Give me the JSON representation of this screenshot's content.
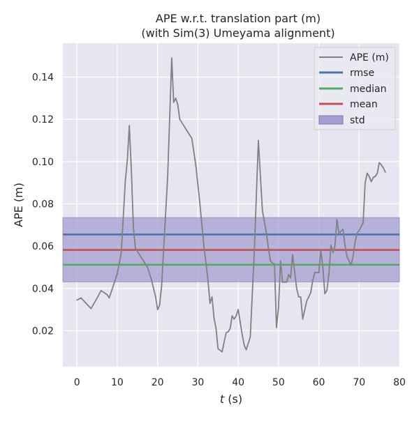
{
  "chart_data": {
    "type": "line",
    "title": [
      "APE w.r.t. translation part (m)",
      "(with Sim(3) Umeyama alignment)"
    ],
    "xlabel_var": "t",
    "xlabel_unit": " (s)",
    "ylabel": "APE (m)",
    "xlim": [
      -3.5,
      80
    ],
    "ylim": [
      0.003,
      0.156
    ],
    "xticks": [
      0,
      10,
      20,
      30,
      40,
      50,
      60,
      70,
      80
    ],
    "yticks": [
      0.02,
      0.04,
      0.06,
      0.08,
      0.1,
      0.12,
      0.14
    ],
    "ytick_labels": [
      "0.02",
      "0.04",
      "0.06",
      "0.08",
      "0.10",
      "0.12",
      "0.14"
    ],
    "grid": true,
    "legend_position": "top-right",
    "series": [
      {
        "name": "APE (m)",
        "color": "#808080",
        "x": [
          0,
          1,
          2,
          3.5,
          5,
          6,
          7.5,
          8,
          9.5,
          10,
          11,
          12,
          12.5,
          13,
          13.5,
          14,
          14.5,
          15.5,
          16.5,
          17.5,
          18.5,
          19,
          19.5,
          20,
          20.5,
          21,
          22.5,
          23.5,
          24,
          24.5,
          25,
          25.5,
          26.5,
          27.5,
          28.5,
          29.5,
          30.5,
          31.5,
          32.5,
          33,
          33.5,
          34,
          34.5,
          35,
          36,
          37,
          37.5,
          38,
          38.5,
          39,
          39.5,
          40,
          40.5,
          41,
          41.5,
          42,
          42.5,
          43,
          44,
          45,
          46,
          47,
          47.5,
          48,
          48.5,
          49,
          49.5,
          50,
          50.5,
          51,
          51.5,
          52,
          52.5,
          53,
          53.5,
          54,
          54.5,
          55,
          55.5,
          56,
          57,
          57.5,
          58,
          58.5,
          59,
          60,
          60.5,
          61,
          61.5,
          62,
          62.5,
          63,
          63.5,
          64,
          64.5,
          65,
          66,
          66.5,
          67,
          68,
          68.5,
          69,
          69.5,
          70,
          71,
          71.5,
          72,
          72.5,
          73,
          73.5,
          74,
          74.5,
          75,
          75.5,
          76,
          76.5
        ],
        "values": [
          0.0345,
          0.0355,
          0.0335,
          0.0305,
          0.0355,
          0.039,
          0.037,
          0.0355,
          0.044,
          0.047,
          0.057,
          0.091,
          0.101,
          0.117,
          0.096,
          0.069,
          0.059,
          0.056,
          0.053,
          0.05,
          0.044,
          0.04,
          0.036,
          0.03,
          0.032,
          0.041,
          0.093,
          0.149,
          0.128,
          0.13,
          0.127,
          0.12,
          0.117,
          0.114,
          0.111,
          0.098,
          0.08,
          0.06,
          0.044,
          0.033,
          0.036,
          0.026,
          0.021,
          0.0115,
          0.01,
          0.019,
          0.0195,
          0.021,
          0.027,
          0.0255,
          0.027,
          0.03,
          0.024,
          0.018,
          0.013,
          0.011,
          0.014,
          0.017,
          0.058,
          0.11,
          0.077,
          0.066,
          0.059,
          0.053,
          0.052,
          0.0515,
          0.0215,
          0.031,
          0.053,
          0.043,
          0.043,
          0.043,
          0.0465,
          0.045,
          0.056,
          0.048,
          0.04,
          0.036,
          0.036,
          0.0255,
          0.034,
          0.036,
          0.038,
          0.044,
          0.0475,
          0.0475,
          0.058,
          0.05,
          0.0375,
          0.039,
          0.047,
          0.0605,
          0.057,
          0.06,
          0.0725,
          0.066,
          0.068,
          0.06,
          0.055,
          0.051,
          0.055,
          0.062,
          0.066,
          0.0675,
          0.071,
          0.09,
          0.0945,
          0.093,
          0.0905,
          0.0925,
          0.093,
          0.0945,
          0.0995,
          0.0985,
          0.097,
          0.095
        ]
      }
    ],
    "stats": [
      {
        "name": "rmse",
        "value": 0.0655,
        "color": "#4c72b0"
      },
      {
        "name": "median",
        "value": 0.0512,
        "color": "#55a868"
      },
      {
        "name": "mean",
        "value": 0.0582,
        "color": "#c44e52"
      }
    ],
    "std_band": {
      "name": "std",
      "lower": 0.0431,
      "upper": 0.0735,
      "color": "#8172b3"
    },
    "legend_order": [
      "APE (m)",
      "rmse",
      "median",
      "mean",
      "std"
    ],
    "colors": {
      "plot_background": "#e6e6f0",
      "grid": "#ffffff",
      "std_fill": "#a59fd1",
      "page_background": "#ffffff"
    }
  }
}
